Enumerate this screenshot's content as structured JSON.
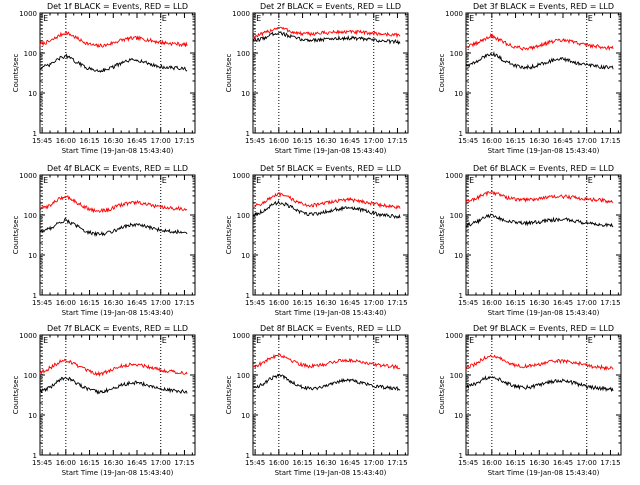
{
  "chart_data": [
    {
      "type": "line",
      "title": "Det 1f BLACK = Events, RED = LLD",
      "xlabel": "Start Time (19-Jan-08 15:43:40)",
      "ylabel": "Counts/sec",
      "y_scale": "log",
      "ylim": [
        1,
        1000
      ],
      "x_ticks": [
        "15:45",
        "16:00",
        "16:15",
        "16:30",
        "16:45",
        "17:00",
        "17:15"
      ],
      "y_ticks": [
        "1",
        "10",
        "100",
        "1000"
      ],
      "markers": [
        {
          "time": "15:45",
          "label": "E"
        },
        {
          "time": "16:00",
          "label": ""
        },
        {
          "time": "17:00",
          "label": "E"
        }
      ],
      "time_points": [
        "15:43",
        "15:50",
        "15:55",
        "16:00",
        "16:05",
        "16:10",
        "16:15",
        "16:20",
        "16:25",
        "16:30",
        "16:35",
        "16:40",
        "16:45",
        "16:50",
        "16:55",
        "17:00",
        "17:05",
        "17:10",
        "17:15",
        "17:20"
      ],
      "series": [
        {
          "name": "LLD",
          "color": "#ff0000",
          "values": [
            165,
            195,
            260,
            330,
            260,
            200,
            165,
            150,
            155,
            180,
            210,
            230,
            235,
            220,
            200,
            185,
            175,
            170,
            160,
            158
          ]
        },
        {
          "name": "Events",
          "color": "#000000",
          "values": [
            42,
            50,
            70,
            85,
            65,
            50,
            40,
            36,
            38,
            45,
            55,
            65,
            68,
            58,
            50,
            45,
            43,
            42,
            40,
            38
          ]
        }
      ]
    },
    {
      "type": "line",
      "title": "Det 2f BLACK = Events, RED = LLD",
      "xlabel": "Start Time (19-Jan-08 15:43:40)",
      "ylabel": "Counts/sec",
      "y_scale": "log",
      "ylim": [
        1,
        1000
      ],
      "x_ticks": [
        "15:45",
        "16:00",
        "16:15",
        "16:30",
        "16:45",
        "17:00",
        "17:15"
      ],
      "y_ticks": [
        "1",
        "10",
        "100",
        "1000"
      ],
      "markers": [
        {
          "time": "15:45",
          "label": "E"
        },
        {
          "time": "16:00",
          "label": ""
        },
        {
          "time": "17:00",
          "label": "E"
        }
      ],
      "time_points": [
        "15:43",
        "15:50",
        "15:55",
        "16:00",
        "16:05",
        "16:10",
        "16:15",
        "16:20",
        "16:25",
        "16:30",
        "16:35",
        "16:40",
        "16:45",
        "16:50",
        "16:55",
        "17:00",
        "17:05",
        "17:10",
        "17:15",
        "17:20"
      ],
      "series": [
        {
          "name": "LLD",
          "color": "#ff0000",
          "values": [
            250,
            300,
            370,
            440,
            380,
            320,
            300,
            300,
            310,
            320,
            330,
            335,
            335,
            330,
            320,
            310,
            300,
            290,
            280,
            270
          ]
        },
        {
          "name": "Events",
          "color": "#000000",
          "values": [
            200,
            230,
            290,
            330,
            280,
            240,
            215,
            210,
            215,
            220,
            230,
            235,
            235,
            230,
            220,
            210,
            200,
            195,
            190,
            185
          ]
        }
      ]
    },
    {
      "type": "line",
      "title": "Det 3f BLACK = Events, RED = LLD",
      "xlabel": "Start Time (19-Jan-08 15:43:40)",
      "ylabel": "Counts/sec",
      "y_scale": "log",
      "ylim": [
        1,
        1000
      ],
      "x_ticks": [
        "15:45",
        "16:00",
        "16:15",
        "16:30",
        "16:45",
        "17:00",
        "17:15"
      ],
      "y_ticks": [
        "1",
        "10",
        "100",
        "1000"
      ],
      "markers": [
        {
          "time": "15:45",
          "label": "E"
        },
        {
          "time": "16:00",
          "label": ""
        },
        {
          "time": "17:00",
          "label": "E"
        }
      ],
      "time_points": [
        "15:43",
        "15:50",
        "15:55",
        "16:00",
        "16:05",
        "16:10",
        "16:15",
        "16:20",
        "16:25",
        "16:30",
        "16:35",
        "16:40",
        "16:45",
        "16:50",
        "16:55",
        "17:00",
        "17:05",
        "17:10",
        "17:15",
        "17:20"
      ],
      "series": [
        {
          "name": "LLD",
          "color": "#ff0000",
          "values": [
            140,
            170,
            220,
            270,
            210,
            165,
            140,
            130,
            135,
            155,
            180,
            200,
            205,
            195,
            175,
            160,
            150,
            140,
            135,
            130
          ]
        },
        {
          "name": "Events",
          "color": "#000000",
          "values": [
            48,
            58,
            80,
            100,
            75,
            58,
            48,
            44,
            45,
            52,
            60,
            68,
            70,
            62,
            55,
            50,
            47,
            45,
            43,
            42
          ]
        }
      ]
    },
    {
      "type": "line",
      "title": "Det 4f BLACK = Events, RED = LLD",
      "xlabel": "Start Time (19-Jan-08 15:43:40)",
      "ylabel": "Counts/sec",
      "y_scale": "log",
      "ylim": [
        1,
        1000
      ],
      "x_ticks": [
        "15:45",
        "16:00",
        "16:15",
        "16:30",
        "16:45",
        "17:00",
        "17:15"
      ],
      "y_ticks": [
        "1",
        "10",
        "100",
        "1000"
      ],
      "markers": [
        {
          "time": "15:45",
          "label": "E"
        },
        {
          "time": "16:00",
          "label": ""
        },
        {
          "time": "17:00",
          "label": "E"
        }
      ],
      "time_points": [
        "15:43",
        "15:50",
        "15:55",
        "16:00",
        "16:05",
        "16:10",
        "16:15",
        "16:20",
        "16:25",
        "16:30",
        "16:35",
        "16:40",
        "16:45",
        "16:50",
        "16:55",
        "17:00",
        "17:05",
        "17:10",
        "17:15",
        "17:20"
      ],
      "series": [
        {
          "name": "LLD",
          "color": "#ff0000",
          "values": [
            140,
            175,
            240,
            300,
            230,
            175,
            140,
            125,
            130,
            150,
            180,
            200,
            205,
            190,
            170,
            155,
            148,
            145,
            142,
            140
          ]
        },
        {
          "name": "Events",
          "color": "#000000",
          "values": [
            38,
            46,
            62,
            75,
            58,
            45,
            36,
            33,
            35,
            40,
            48,
            55,
            58,
            52,
            46,
            42,
            40,
            38,
            37,
            36
          ]
        }
      ]
    },
    {
      "type": "line",
      "title": "Det 5f BLACK = Events, RED = LLD",
      "xlabel": "Start Time (19-Jan-08 15:43:40)",
      "ylabel": "Counts/sec",
      "y_scale": "log",
      "ylim": [
        1,
        1000
      ],
      "x_ticks": [
        "15:45",
        "16:00",
        "16:15",
        "16:30",
        "16:45",
        "17:00",
        "17:15"
      ],
      "y_ticks": [
        "1",
        "10",
        "100",
        "1000"
      ],
      "markers": [
        {
          "time": "15:45",
          "label": "E"
        },
        {
          "time": "16:00",
          "label": ""
        },
        {
          "time": "17:00",
          "label": "E"
        }
      ],
      "time_points": [
        "15:43",
        "15:50",
        "15:55",
        "16:00",
        "16:05",
        "16:10",
        "16:15",
        "16:20",
        "16:25",
        "16:30",
        "16:35",
        "16:40",
        "16:45",
        "16:50",
        "16:55",
        "17:00",
        "17:05",
        "17:10",
        "17:15",
        "17:20"
      ],
      "series": [
        {
          "name": "LLD",
          "color": "#ff0000",
          "values": [
            160,
            200,
            270,
            330,
            290,
            230,
            185,
            175,
            180,
            200,
            220,
            235,
            240,
            230,
            210,
            190,
            175,
            165,
            155,
            150
          ]
        },
        {
          "name": "Events",
          "color": "#000000",
          "values": [
            100,
            125,
            170,
            210,
            180,
            140,
            110,
            105,
            110,
            120,
            135,
            145,
            150,
            140,
            125,
            110,
            100,
            95,
            92,
            90
          ]
        }
      ]
    },
    {
      "type": "line",
      "title": "Det 6f BLACK = Events, RED = LLD",
      "xlabel": "Start Time (19-Jan-08 15:43:40)",
      "ylabel": "Counts/sec",
      "y_scale": "log",
      "ylim": [
        1,
        1000
      ],
      "x_ticks": [
        "15:45",
        "16:00",
        "16:15",
        "16:30",
        "16:45",
        "17:00",
        "17:15"
      ],
      "y_ticks": [
        "1",
        "10",
        "100",
        "1000"
      ],
      "markers": [
        {
          "time": "15:45",
          "label": "E"
        },
        {
          "time": "16:00",
          "label": ""
        },
        {
          "time": "17:00",
          "label": "E"
        }
      ],
      "time_points": [
        "15:43",
        "15:50",
        "15:55",
        "16:00",
        "16:05",
        "16:10",
        "16:15",
        "16:20",
        "16:25",
        "16:30",
        "16:35",
        "16:40",
        "16:45",
        "16:50",
        "16:55",
        "17:00",
        "17:05",
        "17:10",
        "17:15",
        "17:20"
      ],
      "series": [
        {
          "name": "LLD",
          "color": "#ff0000",
          "values": [
            210,
            260,
            330,
            380,
            320,
            270,
            245,
            240,
            245,
            260,
            275,
            285,
            290,
            280,
            265,
            250,
            240,
            230,
            222,
            215
          ]
        },
        {
          "name": "Events",
          "color": "#000000",
          "values": [
            55,
            65,
            85,
            100,
            82,
            70,
            64,
            62,
            63,
            67,
            72,
            76,
            78,
            74,
            68,
            62,
            58,
            56,
            55,
            54
          ]
        }
      ]
    },
    {
      "type": "line",
      "title": "Det 7f BLACK = Events, RED = LLD",
      "xlabel": "Start Time (19-Jan-08 15:43:40)",
      "ylabel": "Counts/sec",
      "y_scale": "log",
      "ylim": [
        1,
        1000
      ],
      "x_ticks": [
        "15:45",
        "16:00",
        "16:15",
        "16:30",
        "16:45",
        "17:00",
        "17:15"
      ],
      "y_ticks": [
        "1",
        "10",
        "100",
        "1000"
      ],
      "markers": [
        {
          "time": "15:45",
          "label": "E"
        },
        {
          "time": "16:00",
          "label": ""
        },
        {
          "time": "17:00",
          "label": "E"
        }
      ],
      "time_points": [
        "15:43",
        "15:50",
        "15:55",
        "16:00",
        "16:05",
        "16:10",
        "16:15",
        "16:20",
        "16:25",
        "16:30",
        "16:35",
        "16:40",
        "16:45",
        "16:50",
        "16:55",
        "17:00",
        "17:05",
        "17:10",
        "17:15",
        "17:20"
      ],
      "series": [
        {
          "name": "LLD",
          "color": "#ff0000",
          "values": [
            115,
            150,
            200,
            240,
            195,
            150,
            120,
            105,
            115,
            140,
            165,
            180,
            185,
            170,
            150,
            135,
            125,
            118,
            112,
            110
          ]
        },
        {
          "name": "Events",
          "color": "#000000",
          "values": [
            38,
            48,
            70,
            90,
            70,
            52,
            42,
            38,
            40,
            46,
            55,
            62,
            65,
            58,
            50,
            45,
            42,
            40,
            38,
            37
          ]
        }
      ]
    },
    {
      "type": "line",
      "title": "Det 8f BLACK = Events, RED = LLD",
      "xlabel": "Start Time (19-Jan-08 15:43:40)",
      "ylabel": "Counts/sec",
      "y_scale": "log",
      "ylim": [
        1,
        1000
      ],
      "x_ticks": [
        "15:45",
        "16:00",
        "16:15",
        "16:30",
        "16:45",
        "17:00",
        "17:15"
      ],
      "y_ticks": [
        "1",
        "10",
        "100",
        "1000"
      ],
      "markers": [
        {
          "time": "15:45",
          "label": "E"
        },
        {
          "time": "16:00",
          "label": ""
        },
        {
          "time": "17:00",
          "label": "E"
        }
      ],
      "time_points": [
        "15:43",
        "15:50",
        "15:55",
        "16:00",
        "16:05",
        "16:10",
        "16:15",
        "16:20",
        "16:25",
        "16:30",
        "16:35",
        "16:40",
        "16:45",
        "16:50",
        "16:55",
        "17:00",
        "17:05",
        "17:10",
        "17:15",
        "17:20"
      ],
      "series": [
        {
          "name": "LLD",
          "color": "#ff0000",
          "values": [
            160,
            200,
            270,
            330,
            270,
            215,
            180,
            165,
            170,
            190,
            215,
            230,
            235,
            225,
            205,
            185,
            172,
            165,
            158,
            155
          ]
        },
        {
          "name": "Events",
          "color": "#000000",
          "values": [
            48,
            58,
            82,
            100,
            80,
            62,
            50,
            46,
            48,
            55,
            64,
            72,
            75,
            68,
            60,
            54,
            50,
            48,
            46,
            45
          ]
        }
      ]
    },
    {
      "type": "line",
      "title": "Det 9f BLACK = Events, RED = LLD",
      "xlabel": "Start Time (19-Jan-08 15:43:40)",
      "ylabel": "Counts/sec",
      "y_scale": "log",
      "ylim": [
        1,
        1000
      ],
      "x_ticks": [
        "15:45",
        "16:00",
        "16:15",
        "16:30",
        "16:45",
        "17:00",
        "17:15"
      ],
      "y_ticks": [
        "1",
        "10",
        "100",
        "1000"
      ],
      "markers": [
        {
          "time": "15:45",
          "label": "E"
        },
        {
          "time": "16:00",
          "label": ""
        },
        {
          "time": "17:00",
          "label": "E"
        }
      ],
      "time_points": [
        "15:43",
        "15:50",
        "15:55",
        "16:00",
        "16:05",
        "16:10",
        "16:15",
        "16:20",
        "16:25",
        "16:30",
        "16:35",
        "16:40",
        "16:45",
        "16:50",
        "16:55",
        "17:00",
        "17:05",
        "17:10",
        "17:15",
        "17:20"
      ],
      "series": [
        {
          "name": "LLD",
          "color": "#ff0000",
          "values": [
            150,
            190,
            260,
            310,
            255,
            205,
            175,
            165,
            170,
            185,
            205,
            220,
            225,
            215,
            195,
            175,
            162,
            155,
            148,
            145
          ]
        },
        {
          "name": "Events",
          "color": "#000000",
          "values": [
            50,
            60,
            80,
            95,
            78,
            62,
            52,
            48,
            50,
            56,
            64,
            70,
            72,
            66,
            58,
            52,
            48,
            46,
            44,
            43
          ]
        }
      ]
    }
  ]
}
